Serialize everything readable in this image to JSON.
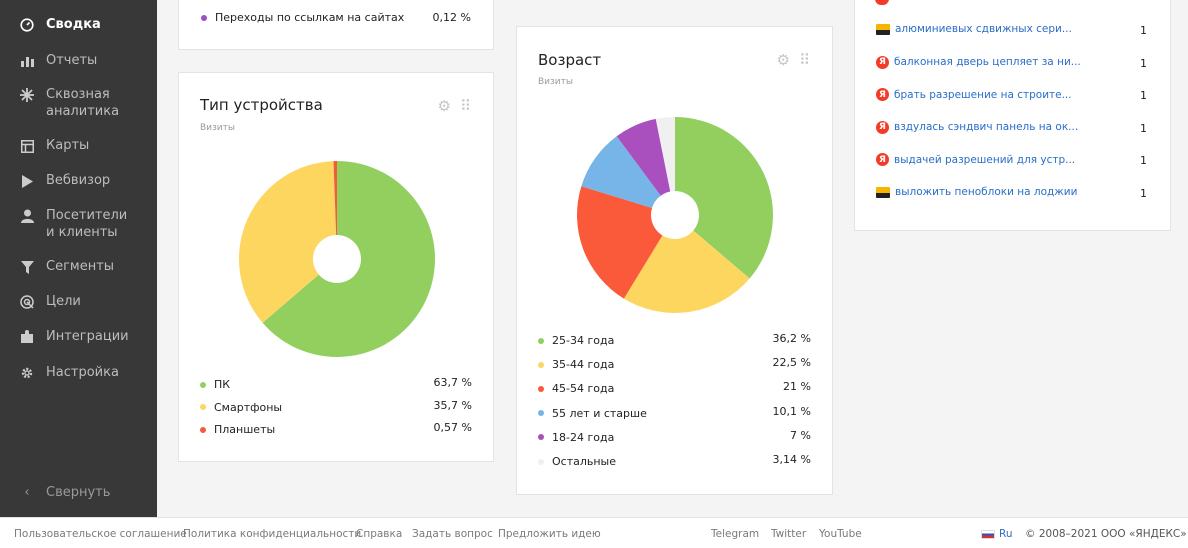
{
  "sidebar": {
    "items": [
      {
        "label": "Сводка",
        "icon": "gauge-icon"
      },
      {
        "label": "Отчеты",
        "icon": "bar-chart-icon"
      },
      {
        "label": "Сквозная аналитика",
        "icon": "sparkle-icon"
      },
      {
        "label": "Карты",
        "icon": "map-grid-icon"
      },
      {
        "label": "Вебвизор",
        "icon": "play-icon"
      },
      {
        "label": "Посетители и клиенты",
        "icon": "person-icon"
      },
      {
        "label": "Сегменты",
        "icon": "funnel-icon"
      },
      {
        "label": "Цели",
        "icon": "target-icon"
      },
      {
        "label": "Интеграции",
        "icon": "puzzle-icon"
      },
      {
        "label": "Настройка",
        "icon": "gear-icon"
      }
    ],
    "collapse_label": "Свернуть"
  },
  "top_left_card": {
    "row_label": "Переходы по ссылкам на сайтах",
    "row_value": "0,12 %",
    "row_color": "#9b4fc6"
  },
  "device_card": {
    "title": "Тип устройства",
    "subtitle": "Визиты",
    "chart_data": {
      "type": "pie",
      "categories": [
        "ПК",
        "Смартфоны",
        "Планшеты"
      ],
      "values": [
        63.7,
        35.7,
        0.57
      ],
      "labels": [
        "63,7 %",
        "35,7 %",
        "0,57 %"
      ],
      "colors": [
        "#93cf5f",
        "#fdd660",
        "#f25b3c"
      ]
    }
  },
  "age_card": {
    "title": "Возраст",
    "subtitle": "Визиты",
    "chart_data": {
      "type": "pie",
      "categories": [
        "25-34 года",
        "35-44 года",
        "45-54 года",
        "55 лет и старше",
        "18-24 года",
        "Остальные"
      ],
      "values": [
        36.2,
        22.5,
        21,
        10.1,
        7,
        3.14
      ],
      "labels": [
        "36,2 %",
        "22,5 %",
        "21 %",
        "10,1 %",
        "7 %",
        "3,14 %"
      ],
      "colors": [
        "#93cf5f",
        "#fdd660",
        "#fa5a3a",
        "#77b5e9",
        "#a94fbe",
        "#f0f0f0"
      ]
    }
  },
  "search_phrases": {
    "rows": [
      {
        "text": "алюминиевых сдвижных сери...",
        "count": "1",
        "icon": "image-icon"
      },
      {
        "text": "балконная дверь цепляет за ни...",
        "count": "1",
        "icon": "yandex-icon"
      },
      {
        "text": "брать разрешение на строите...",
        "count": "1",
        "icon": "yandex-icon"
      },
      {
        "text": "вздулась сэндвич панель на ок...",
        "count": "1",
        "icon": "yandex-icon"
      },
      {
        "text": "выдачей разрешений для устр...",
        "count": "1",
        "icon": "yandex-icon"
      },
      {
        "text": "выложить пеноблоки на лоджии",
        "count": "1",
        "icon": "image-icon"
      }
    ],
    "yandex_glyph": "Я"
  },
  "footer": {
    "links": [
      "Пользовательское соглашение",
      "Политика конфиденциальности",
      "Справка",
      "Задать вопрос",
      "Предложить идею"
    ],
    "social": [
      "Telegram",
      "Twitter",
      "YouTube"
    ],
    "lang": "Ru",
    "copyright": "© 2008–2021 ООО «ЯНДЕКС»"
  }
}
